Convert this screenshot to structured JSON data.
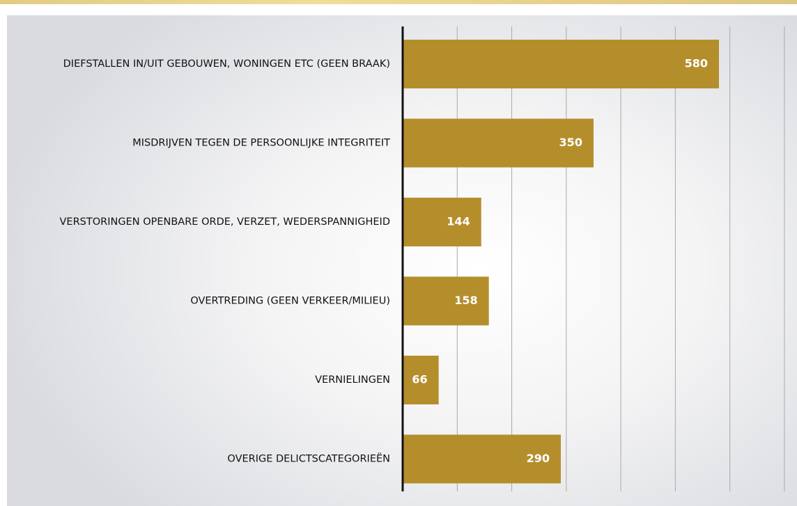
{
  "chart_data": {
    "type": "bar",
    "orientation": "horizontal",
    "categories": [
      "DIEFSTALLEN IN/UIT GEBOUWEN, WONINGEN ETC (GEEN BRAAK)",
      "MISDRIJVEN TEGEN DE PERSOONLIJKE INTEGRITEIT",
      "VERSTORINGEN OPENBARE ORDE, VERZET, WEDERSPANNIGHEID",
      "OVERTREDING (GEEN VERKEER/MILIEU)",
      "VERNIELINGEN",
      "OVERIGE DELICTSCATEGORIEËN"
    ],
    "values": [
      580,
      350,
      144,
      158,
      66,
      290
    ],
    "data_labels": [
      "580",
      "350",
      "144",
      "158",
      "66",
      "290"
    ],
    "xlim": [
      0,
      700
    ],
    "grid": true,
    "bar_color": "#b58e2c"
  }
}
